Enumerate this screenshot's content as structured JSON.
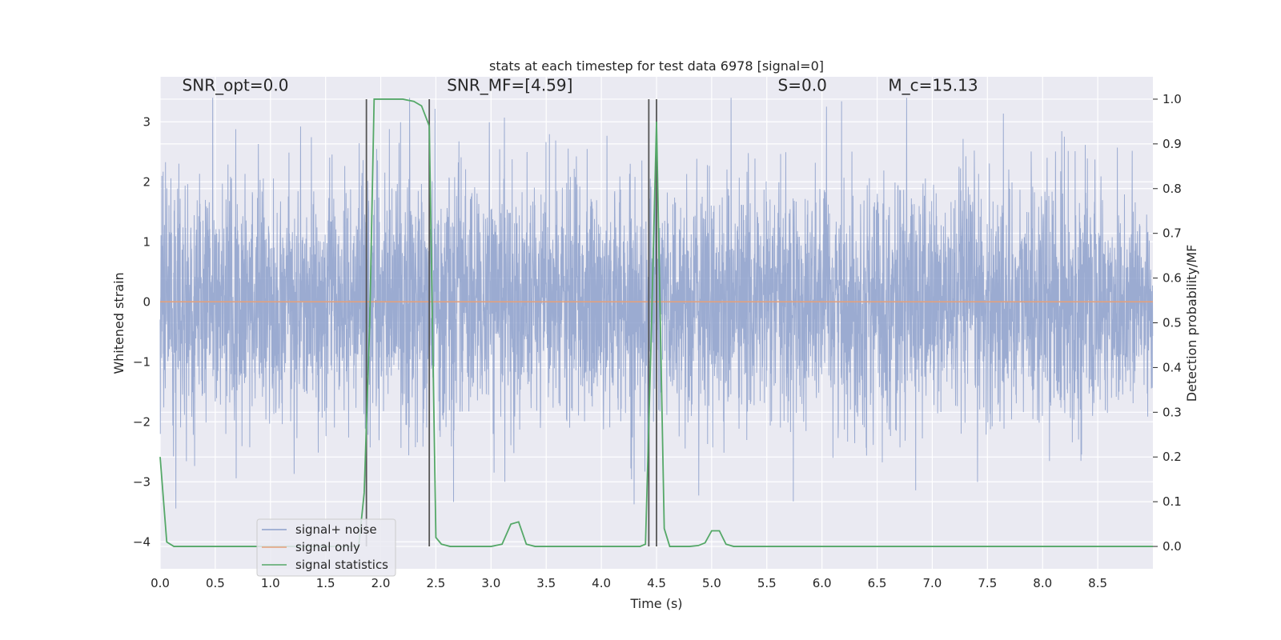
{
  "chart_data": {
    "type": "line",
    "title": "stats at each timestep for test data 6978 [signal=0]",
    "xlabel": "Time (s)",
    "ylabel": "Whitened strain",
    "ylabel_right": "Detection probability/MF",
    "xlim": [
      0.0,
      9.0
    ],
    "ylim": [
      -4.45,
      3.75
    ],
    "ylim_right": [
      -0.05,
      1.05
    ],
    "xticks": [
      0.0,
      0.5,
      1.0,
      1.5,
      2.0,
      2.5,
      3.0,
      3.5,
      4.0,
      4.5,
      5.0,
      5.5,
      6.0,
      6.5,
      7.0,
      7.5,
      8.0,
      8.5
    ],
    "xtick_labels": [
      "0.0",
      "0.5",
      "1.0",
      "1.5",
      "2.0",
      "2.5",
      "3.0",
      "3.5",
      "4.0",
      "4.5",
      "5.0",
      "5.5",
      "6.0",
      "6.5",
      "7.0",
      "7.5",
      "8.0",
      "8.5"
    ],
    "yticks": [
      -4,
      -3,
      -2,
      -1,
      0,
      1,
      2,
      3
    ],
    "ytick_labels": [
      "−4",
      "−3",
      "−2",
      "−1",
      "0",
      "1",
      "2",
      "3"
    ],
    "yticks_right": [
      0.0,
      0.1,
      0.2,
      0.3,
      0.4,
      0.5,
      0.6,
      0.7,
      0.8,
      0.9,
      1.0
    ],
    "ytick_labels_right": [
      "0.0",
      "0.1",
      "0.2",
      "0.3",
      "0.4",
      "0.5",
      "0.6",
      "0.7",
      "0.8",
      "0.9",
      "1.0"
    ],
    "grid": true,
    "legend_position": "lower-left",
    "annotations": [
      {
        "text": "SNR_opt=0.0",
        "x": 0.2
      },
      {
        "text": "SNR_MF=[4.59]",
        "x": 2.6
      },
      {
        "text": "S=0.0",
        "x": 5.6
      },
      {
        "text": "M_c=15.13",
        "x": 6.6
      }
    ],
    "vertical_markers": [
      1.87,
      2.44,
      4.43,
      4.5
    ],
    "series": [
      {
        "name": "signal+ noise",
        "axis": "left",
        "color": "#8da0cb",
        "kind": "noise",
        "sample_rate": 512,
        "std": 1.0,
        "range": [
          -3.7,
          3.4
        ]
      },
      {
        "name": "signal only",
        "axis": "left",
        "color": "#e5a07a",
        "x": [
          0.0,
          9.0
        ],
        "y": [
          0.0,
          0.0
        ]
      },
      {
        "name": "signal statistics",
        "axis": "right",
        "color": "#55a868",
        "x": [
          0.0,
          0.06,
          0.125,
          0.2,
          1.8,
          1.85,
          1.9,
          1.94,
          2.0,
          2.2,
          2.3,
          2.37,
          2.44,
          2.5,
          2.55,
          2.63,
          2.7,
          3.0,
          3.1,
          3.18,
          3.25,
          3.32,
          3.4,
          4.35,
          4.4,
          4.45,
          4.5,
          4.57,
          4.62,
          4.8,
          4.88,
          4.94,
          5.0,
          5.07,
          5.13,
          5.2,
          9.0
        ],
        "y": [
          0.2,
          0.01,
          0.0,
          0.0,
          0.0,
          0.12,
          0.5,
          1.0,
          1.0,
          1.0,
          0.995,
          0.985,
          0.94,
          0.02,
          0.005,
          0.0,
          0.0,
          0.0,
          0.005,
          0.05,
          0.055,
          0.005,
          0.0,
          0.0,
          0.005,
          0.45,
          0.95,
          0.04,
          0.0,
          0.0,
          0.002,
          0.008,
          0.035,
          0.035,
          0.005,
          0.0,
          0.0
        ]
      }
    ]
  }
}
